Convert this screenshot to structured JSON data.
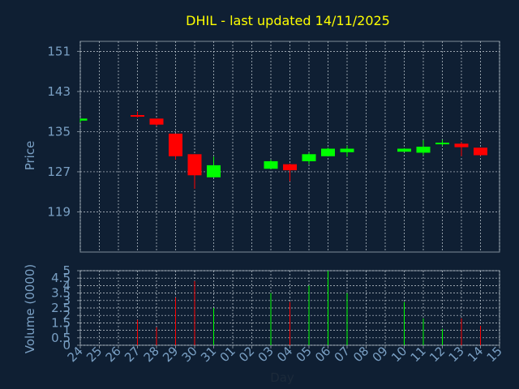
{
  "chart_data": [
    {
      "type": "candlestick",
      "title": "DHIL - last updated 14/11/2025",
      "ylabel": "Price",
      "ylim": [
        111,
        153
      ],
      "yticks": [
        119,
        127,
        135,
        143,
        151
      ],
      "categories": [
        "24",
        "25",
        "26",
        "27",
        "28",
        "29",
        "30",
        "31",
        "01",
        "02",
        "03",
        "04",
        "05",
        "06",
        "07",
        "08",
        "09",
        "10",
        "11",
        "12",
        "13",
        "14",
        "15"
      ],
      "candles": [
        {
          "day": "24",
          "open": 137.2,
          "high": 137.6,
          "low": 136.8,
          "close": 137.6
        },
        {
          "day": "27",
          "open": 138.3,
          "high": 139.0,
          "low": 137.8,
          "close": 138.0
        },
        {
          "day": "28",
          "open": 137.6,
          "high": 137.6,
          "low": 136.1,
          "close": 136.4
        },
        {
          "day": "29",
          "open": 134.6,
          "high": 134.6,
          "low": 129.4,
          "close": 130.1
        },
        {
          "day": "30",
          "open": 130.5,
          "high": 130.5,
          "low": 123.6,
          "close": 126.3
        },
        {
          "day": "31",
          "open": 125.9,
          "high": 130.0,
          "low": 125.9,
          "close": 128.3
        },
        {
          "day": "03",
          "open": 127.6,
          "high": 129.4,
          "low": 127.6,
          "close": 129.1
        },
        {
          "day": "04",
          "open": 128.5,
          "high": 128.6,
          "low": 125.1,
          "close": 127.3
        },
        {
          "day": "05",
          "open": 129.1,
          "high": 130.8,
          "low": 128.5,
          "close": 130.5
        },
        {
          "day": "06",
          "open": 130.1,
          "high": 131.8,
          "low": 130.1,
          "close": 131.6
        },
        {
          "day": "07",
          "open": 130.9,
          "high": 132.2,
          "low": 130.0,
          "close": 131.6
        },
        {
          "day": "10",
          "open": 131.0,
          "high": 131.7,
          "low": 131.0,
          "close": 131.6
        },
        {
          "day": "11",
          "open": 130.8,
          "high": 133.3,
          "low": 130.3,
          "close": 132.0
        },
        {
          "day": "12",
          "open": 132.5,
          "high": 133.4,
          "low": 132.2,
          "close": 132.8
        },
        {
          "day": "13",
          "open": 132.6,
          "high": 132.9,
          "low": 130.1,
          "close": 131.9
        },
        {
          "day": "14",
          "open": 131.8,
          "high": 131.8,
          "low": 130.2,
          "close": 130.3
        }
      ],
      "colors": {
        "up": "#00ff00",
        "down": "#ff0000",
        "title": "#ffff00",
        "axis_text": "#7aa0c4",
        "background": "#0f1f33"
      }
    },
    {
      "type": "bar",
      "ylabel": "Volume (0000)",
      "xlabel": "Day",
      "ylim": [
        0,
        5
      ],
      "yticks": [
        "0",
        "0.5",
        "1",
        "1.5",
        "2",
        "2.5",
        "3",
        "3.5",
        "4",
        "4.5",
        "5"
      ],
      "categories": [
        "24",
        "25",
        "26",
        "27",
        "28",
        "29",
        "30",
        "31",
        "01",
        "02",
        "03",
        "04",
        "05",
        "06",
        "07",
        "08",
        "09",
        "10",
        "11",
        "12",
        "13",
        "14",
        "15"
      ],
      "bars": [
        {
          "day": "27",
          "value": 1.7,
          "direction": "down"
        },
        {
          "day": "28",
          "value": 1.2,
          "direction": "down"
        },
        {
          "day": "29",
          "value": 3.2,
          "direction": "down"
        },
        {
          "day": "30",
          "value": 4.3,
          "direction": "down"
        },
        {
          "day": "31",
          "value": 2.5,
          "direction": "up"
        },
        {
          "day": "03",
          "value": 3.5,
          "direction": "up"
        },
        {
          "day": "04",
          "value": 2.9,
          "direction": "down"
        },
        {
          "day": "05",
          "value": 4.0,
          "direction": "up"
        },
        {
          "day": "06",
          "value": 5.0,
          "direction": "up"
        },
        {
          "day": "07",
          "value": 3.5,
          "direction": "up"
        },
        {
          "day": "10",
          "value": 2.9,
          "direction": "up"
        },
        {
          "day": "11",
          "value": 1.8,
          "direction": "up"
        },
        {
          "day": "12",
          "value": 1.1,
          "direction": "up"
        },
        {
          "day": "13",
          "value": 1.8,
          "direction": "down"
        },
        {
          "day": "14",
          "value": 1.3,
          "direction": "down"
        }
      ]
    }
  ]
}
